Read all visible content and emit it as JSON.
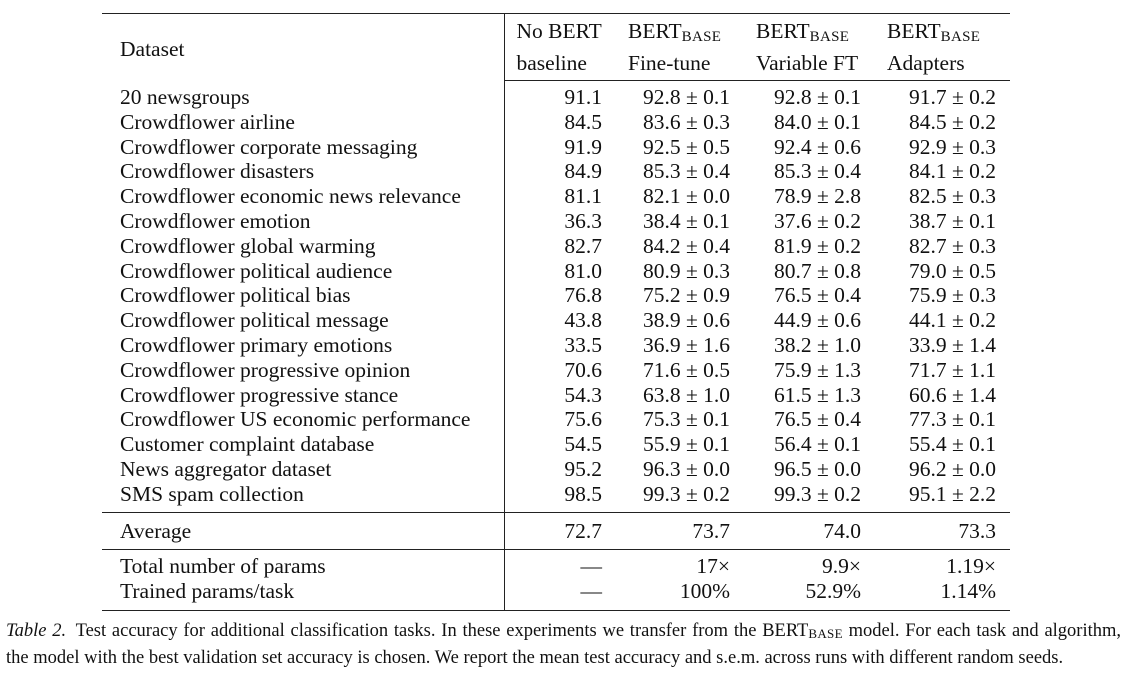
{
  "table": {
    "headers": {
      "dataset": "Dataset",
      "col1": {
        "line1": "No BERT",
        "line2": "baseline"
      },
      "col2": {
        "main": "BERT",
        "sub": "BASE",
        "line2": "Fine-tune"
      },
      "col3": {
        "main": "BERT",
        "sub": "BASE",
        "line2": "Variable FT"
      },
      "col4": {
        "main": "BERT",
        "sub": "BASE",
        "line2": "Adapters"
      }
    },
    "rows": [
      {
        "dataset": "20 newsgroups",
        "baseline": "91.1",
        "finetune": "92.8 ± 0.1",
        "variable_ft": "92.8 ± 0.1",
        "adapters": "91.7 ± 0.2"
      },
      {
        "dataset": "Crowdflower airline",
        "baseline": "84.5",
        "finetune": "83.6 ± 0.3",
        "variable_ft": "84.0 ± 0.1",
        "adapters": "84.5 ± 0.2"
      },
      {
        "dataset": "Crowdflower corporate messaging",
        "baseline": "91.9",
        "finetune": "92.5 ± 0.5",
        "variable_ft": "92.4 ± 0.6",
        "adapters": "92.9 ± 0.3"
      },
      {
        "dataset": "Crowdflower disasters",
        "baseline": "84.9",
        "finetune": "85.3 ± 0.4",
        "variable_ft": "85.3 ± 0.4",
        "adapters": "84.1 ± 0.2"
      },
      {
        "dataset": "Crowdflower economic news relevance",
        "baseline": "81.1",
        "finetune": "82.1 ± 0.0",
        "variable_ft": "78.9 ± 2.8",
        "adapters": "82.5 ± 0.3"
      },
      {
        "dataset": "Crowdflower emotion",
        "baseline": "36.3",
        "finetune": "38.4 ± 0.1",
        "variable_ft": "37.6 ± 0.2",
        "adapters": "38.7 ± 0.1"
      },
      {
        "dataset": "Crowdflower global warming",
        "baseline": "82.7",
        "finetune": "84.2 ± 0.4",
        "variable_ft": "81.9 ± 0.2",
        "adapters": "82.7 ± 0.3"
      },
      {
        "dataset": "Crowdflower political audience",
        "baseline": "81.0",
        "finetune": "80.9 ± 0.3",
        "variable_ft": "80.7 ± 0.8",
        "adapters": "79.0 ± 0.5"
      },
      {
        "dataset": "Crowdflower political bias",
        "baseline": "76.8",
        "finetune": "75.2 ± 0.9",
        "variable_ft": "76.5 ± 0.4",
        "adapters": "75.9 ± 0.3"
      },
      {
        "dataset": "Crowdflower political message",
        "baseline": "43.8",
        "finetune": "38.9 ± 0.6",
        "variable_ft": "44.9 ± 0.6",
        "adapters": "44.1 ± 0.2"
      },
      {
        "dataset": "Crowdflower primary emotions",
        "baseline": "33.5",
        "finetune": "36.9 ± 1.6",
        "variable_ft": "38.2 ± 1.0",
        "adapters": "33.9 ± 1.4"
      },
      {
        "dataset": "Crowdflower progressive opinion",
        "baseline": "70.6",
        "finetune": "71.6 ± 0.5",
        "variable_ft": "75.9 ± 1.3",
        "adapters": "71.7 ± 1.1"
      },
      {
        "dataset": "Crowdflower progressive stance",
        "baseline": "54.3",
        "finetune": "63.8 ± 1.0",
        "variable_ft": "61.5 ± 1.3",
        "adapters": "60.6 ± 1.4"
      },
      {
        "dataset": "Crowdflower US economic performance",
        "baseline": "75.6",
        "finetune": "75.3 ± 0.1",
        "variable_ft": "76.5 ± 0.4",
        "adapters": "77.3 ± 0.1"
      },
      {
        "dataset": "Customer complaint database",
        "baseline": "54.5",
        "finetune": "55.9 ± 0.1",
        "variable_ft": "56.4 ± 0.1",
        "adapters": "55.4 ± 0.1"
      },
      {
        "dataset": "News aggregator dataset",
        "baseline": "95.2",
        "finetune": "96.3 ± 0.0",
        "variable_ft": "96.5 ± 0.0",
        "adapters": "96.2 ± 0.0"
      },
      {
        "dataset": "SMS spam collection",
        "baseline": "98.5",
        "finetune": "99.3 ± 0.2",
        "variable_ft": "99.3 ± 0.2",
        "adapters": "95.1 ± 2.2"
      }
    ],
    "average": {
      "label": "Average",
      "baseline": "72.7",
      "finetune": "73.7",
      "variable_ft": "74.0",
      "adapters": "73.3"
    },
    "params": [
      {
        "label": "Total number of params",
        "baseline": "—",
        "finetune": "17×",
        "variable_ft": "9.9×",
        "adapters": "1.19×"
      },
      {
        "label": "Trained params/task",
        "baseline": "—",
        "finetune": "100%",
        "variable_ft": "52.9%",
        "adapters": "1.14%"
      }
    ]
  },
  "caption": {
    "label": "Table 2.",
    "text_before": "Test accuracy for additional classification tasks. In these experiments we transfer from the BERT",
    "sub": "BASE",
    "text_after": " model. For each task and algorithm, the model with the best validation set accuracy is chosen. We report the mean test accuracy and s.e.m. across runs with different random seeds."
  }
}
